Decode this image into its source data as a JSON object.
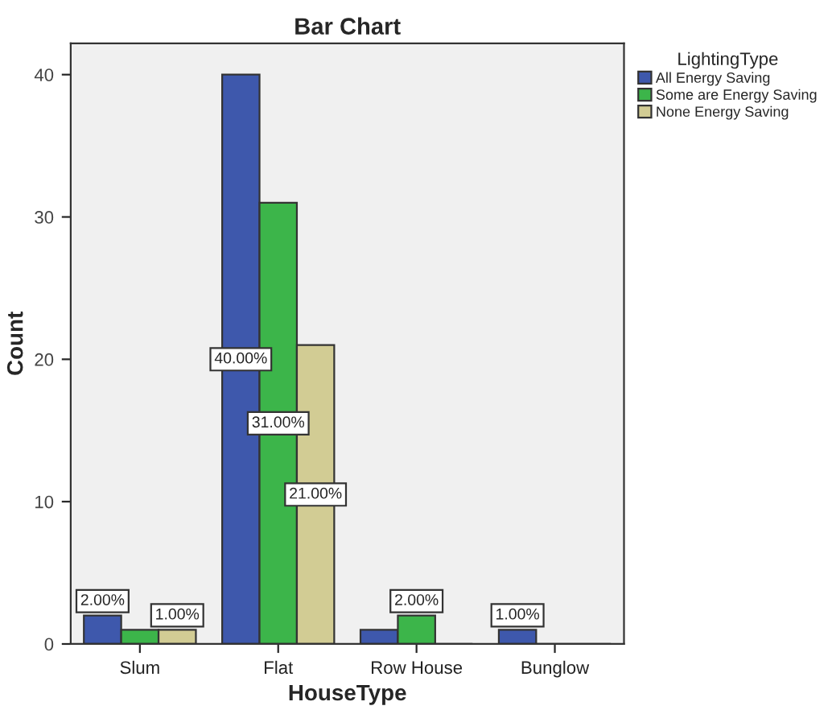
{
  "chart_data": {
    "type": "bar",
    "title": "Bar Chart",
    "xlabel": "HouseType",
    "ylabel": "Count",
    "legend_title": "LightingType",
    "categories": [
      "Slum",
      "Flat",
      "Row House",
      "Bunglow"
    ],
    "series": [
      {
        "name": "All Energy Saving",
        "color": "#3e58ac",
        "values": [
          2,
          40,
          1,
          1
        ],
        "value_labels": [
          "2.00%",
          "40.00%",
          null,
          "1.00%"
        ]
      },
      {
        "name": "Some are Energy Saving",
        "color": "#3cb54a",
        "values": [
          1,
          31,
          2,
          0
        ],
        "value_labels": [
          null,
          "31.00%",
          "2.00%",
          null
        ]
      },
      {
        "name": "None Energy Saving",
        "color": "#d2cc94",
        "values": [
          1,
          21,
          0,
          0
        ],
        "value_labels": [
          "1.00%",
          "21.00%",
          null,
          null
        ]
      }
    ],
    "ylim": [
      0,
      42.2
    ],
    "yticks": [
      0,
      10,
      20,
      30,
      40
    ],
    "grid": false,
    "legend": "right"
  }
}
